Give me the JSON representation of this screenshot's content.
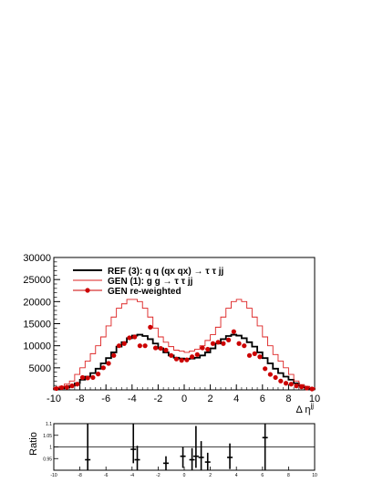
{
  "chart_data": [
    {
      "type": "line",
      "title": "",
      "xlabel": "Δ η^jj",
      "ylabel": "",
      "xlim": [
        -10,
        10
      ],
      "ylim": [
        0,
        30000
      ],
      "x_ticks": [
        "-10",
        "-8",
        "-6",
        "-4",
        "-2",
        "0",
        "2",
        "4",
        "6",
        "8",
        "10"
      ],
      "y_ticks": [
        "5000",
        "10000",
        "15000",
        "20000",
        "25000",
        "30000"
      ],
      "grid": false,
      "legend_position": "top-left",
      "legend": [
        "REF (3): q q (qx qx) → τ τ jj",
        "GEN (1): g g → τ τ jj",
        "GEN re-weighted"
      ],
      "bin_edges": [
        -10.0,
        -9.6,
        -9.2,
        -8.8,
        -8.4,
        -8.0,
        -7.6,
        -7.2,
        -6.8,
        -6.4,
        -6.0,
        -5.6,
        -5.2,
        -4.8,
        -4.4,
        -4.0,
        -3.6,
        -3.2,
        -2.8,
        -2.4,
        -2.0,
        -1.6,
        -1.2,
        -0.8,
        -0.4,
        0.0,
        0.4,
        0.8,
        1.2,
        1.6,
        2.0,
        2.4,
        2.8,
        3.2,
        3.6,
        4.0,
        4.4,
        4.8,
        5.2,
        5.6,
        6.0,
        6.4,
        6.8,
        7.2,
        7.6,
        8.0,
        8.4,
        8.8,
        9.2,
        9.6,
        10.0
      ],
      "series": [
        {
          "name": "REF (3): q q (qx qx) → τ τ jj",
          "style": "histogram",
          "color": "#000000",
          "values": [
            300,
            400,
            600,
            900,
            1500,
            2300,
            3000,
            3800,
            4800,
            6000,
            7200,
            8500,
            9800,
            10800,
            11700,
            12300,
            12500,
            12200,
            11500,
            10500,
            9400,
            8500,
            7800,
            7300,
            7100,
            7000,
            7100,
            7300,
            7800,
            8500,
            9400,
            10500,
            11500,
            12200,
            12500,
            12300,
            11700,
            10800,
            9800,
            8500,
            7200,
            6000,
            4800,
            3800,
            3000,
            2300,
            1500,
            900,
            600,
            300
          ]
        },
        {
          "name": "GEN (1): g g → τ τ jj",
          "style": "histogram",
          "color": "#dd2222",
          "values": [
            500,
            800,
            1300,
            2000,
            3500,
            5000,
            6500,
            8200,
            10000,
            12000,
            14500,
            16500,
            18500,
            19500,
            20500,
            20500,
            20000,
            18500,
            16500,
            14000,
            12000,
            10800,
            9800,
            9000,
            8800,
            8500,
            8800,
            9200,
            10000,
            11200,
            12500,
            14200,
            16500,
            18500,
            20000,
            20500,
            20000,
            18500,
            16500,
            14500,
            12000,
            10000,
            8000,
            6500,
            5000,
            3500,
            2000,
            1200,
            800,
            500
          ]
        },
        {
          "name": "GEN re-weighted",
          "style": "markers",
          "color": "#cc0000",
          "x": [
            -9.8,
            -9.4,
            -9.0,
            -8.6,
            -8.2,
            -7.8,
            -7.4,
            -7.0,
            -6.6,
            -6.2,
            -5.8,
            -5.4,
            -5.0,
            -4.6,
            -4.2,
            -3.8,
            -3.4,
            -3.0,
            -2.6,
            -2.2,
            -1.8,
            -1.4,
            -1.0,
            -0.6,
            -0.2,
            0.2,
            0.6,
            1.0,
            1.4,
            1.8,
            2.2,
            2.6,
            3.0,
            3.4,
            3.8,
            4.2,
            4.6,
            5.0,
            5.4,
            5.8,
            6.2,
            6.6,
            7.0,
            7.4,
            7.8,
            8.2,
            8.6,
            9.0,
            9.4,
            9.8
          ],
          "values": [
            300,
            500,
            600,
            900,
            1300,
            2800,
            2700,
            2800,
            3600,
            5000,
            6000,
            7800,
            10000,
            10500,
            11800,
            12000,
            10000,
            10000,
            14200,
            9500,
            9400,
            9000,
            7800,
            7000,
            6700,
            6800,
            7500,
            8000,
            9500,
            9200,
            10500,
            10800,
            10500,
            11300,
            13200,
            10500,
            10000,
            7800,
            8200,
            7500,
            4800,
            3500,
            2800,
            2000,
            1500,
            1300,
            900,
            700,
            400,
            200
          ]
        }
      ]
    },
    {
      "type": "scatter",
      "title": "",
      "xlabel": "",
      "ylabel": "Ratio",
      "xlim": [
        -10,
        10
      ],
      "ylim": [
        0.9,
        1.1
      ],
      "x_ticks": [
        "-10",
        "-8",
        "-6",
        "-4",
        "-2",
        "0",
        "2",
        "4",
        "6",
        "8",
        "10"
      ],
      "y_ticks": [
        "0.95",
        "1",
        "1.05",
        "1.1"
      ],
      "reference_line": 1.0,
      "grid": false,
      "points": [
        {
          "x": -7.4,
          "y": 0.945,
          "yerr_low": 0.06,
          "yerr_high": 0.17
        },
        {
          "x": -3.9,
          "y": 0.99,
          "yerr_low": 0.06,
          "yerr_high": 0.11
        },
        {
          "x": -3.6,
          "y": 0.945,
          "yerr_low": 0.06,
          "yerr_high": 0.06
        },
        {
          "x": -1.4,
          "y": 0.93,
          "yerr_low": 0.04,
          "yerr_high": 0.03
        },
        {
          "x": -0.1,
          "y": 0.96,
          "yerr_low": 0.05,
          "yerr_high": 0.04
        },
        {
          "x": 0.6,
          "y": 0.945,
          "yerr_low": 0.06,
          "yerr_high": 0.05
        },
        {
          "x": 0.9,
          "y": 0.96,
          "yerr_low": 0.05,
          "yerr_high": 0.13
        },
        {
          "x": 1.3,
          "y": 0.955,
          "yerr_low": 0.07,
          "yerr_high": 0.07
        },
        {
          "x": 1.8,
          "y": 0.935,
          "yerr_low": 0.04,
          "yerr_high": 0.04
        },
        {
          "x": 3.5,
          "y": 0.955,
          "yerr_low": 0.05,
          "yerr_high": 0.06
        },
        {
          "x": 6.2,
          "y": 1.04,
          "yerr_low": 0.14,
          "yerr_high": 0.09
        }
      ]
    }
  ]
}
